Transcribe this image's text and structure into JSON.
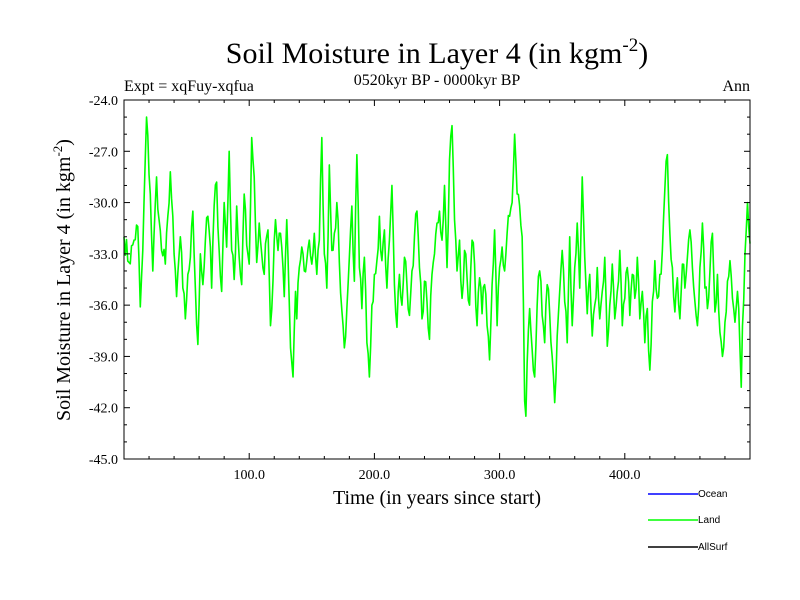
{
  "chart_data": {
    "type": "line",
    "title": "Soil Moisture in Layer 4 (in kgm",
    "title_sup": "-2",
    "title_close": ")",
    "subtitle_left": "Expt = xqFuy-xqfua",
    "subtitle_center": "0520kyr BP - 0000kyr BP",
    "subtitle_right": "Ann",
    "xlabel": "Time (in years since start)",
    "ylabel": "Soil Moisture in Layer 4 (in kgm",
    "ylabel_sup": "-2",
    "ylabel_close": ")",
    "xlim": [
      0,
      500
    ],
    "ylim": [
      -45,
      -24
    ],
    "xticks": [
      100,
      200,
      300,
      400
    ],
    "xtick_labels": [
      "100.0",
      "200.0",
      "300.0",
      "400.0"
    ],
    "yticks": [
      -24,
      -27,
      -30,
      -33,
      -36,
      -39,
      -42,
      -45
    ],
    "ytick_labels": [
      "-24.0",
      "-27.0",
      "-30.0",
      "-33.0",
      "-36.0",
      "-39.0",
      "-42.0",
      "-45.0"
    ],
    "legend_position": "bottom-right",
    "series": [
      {
        "name": "Ocean",
        "color": "#0000ff",
        "values": []
      },
      {
        "name": "Land",
        "color": "#00ff00",
        "anchors": [
          [
            0,
            -32.0
          ],
          [
            4,
            -33.5
          ],
          [
            8,
            -32.2
          ],
          [
            11,
            -31.4
          ],
          [
            13,
            -36.1
          ],
          [
            15,
            -32.8
          ],
          [
            18,
            -25.0
          ],
          [
            21,
            -29.5
          ],
          [
            23,
            -34.0
          ],
          [
            26,
            -28.5
          ],
          [
            28,
            -31.0
          ],
          [
            30,
            -32.8
          ],
          [
            33,
            -33.6
          ],
          [
            35,
            -30.8
          ],
          [
            37,
            -28.2
          ],
          [
            40,
            -33.0
          ],
          [
            42,
            -35.5
          ],
          [
            45,
            -32.0
          ],
          [
            47,
            -35.0
          ],
          [
            49,
            -36.8
          ],
          [
            51,
            -34.2
          ],
          [
            53,
            -33.2
          ],
          [
            55,
            -30.5
          ],
          [
            57,
            -35.0
          ],
          [
            59,
            -38.3
          ],
          [
            61,
            -33.0
          ],
          [
            63,
            -34.8
          ],
          [
            65,
            -32.2
          ],
          [
            67,
            -30.8
          ],
          [
            69,
            -32.6
          ],
          [
            70,
            -35.0
          ],
          [
            72,
            -30.2
          ],
          [
            74,
            -28.8
          ],
          [
            76,
            -32.8
          ],
          [
            78,
            -35.2
          ],
          [
            80,
            -30.0
          ],
          [
            82,
            -32.6
          ],
          [
            84,
            -27.0
          ],
          [
            86,
            -32.8
          ],
          [
            88,
            -34.5
          ],
          [
            90,
            -30.2
          ],
          [
            92,
            -33.2
          ],
          [
            94,
            -34.8
          ],
          [
            96,
            -29.5
          ],
          [
            98,
            -32.5
          ],
          [
            100,
            -33.6
          ],
          [
            102,
            -26.2
          ],
          [
            104,
            -28.5
          ],
          [
            106,
            -33.5
          ],
          [
            108,
            -31.2
          ],
          [
            110,
            -33.0
          ],
          [
            112,
            -34.2
          ],
          [
            113,
            -32.4
          ],
          [
            115,
            -31.6
          ],
          [
            117,
            -37.2
          ],
          [
            119,
            -34.6
          ],
          [
            121,
            -31.0
          ],
          [
            123,
            -32.8
          ],
          [
            125,
            -31.8
          ],
          [
            127,
            -33.8
          ],
          [
            128,
            -35.5
          ],
          [
            130,
            -31.0
          ],
          [
            131,
            -33.2
          ],
          [
            133,
            -38.5
          ],
          [
            135,
            -40.2
          ],
          [
            137,
            -35.2
          ],
          [
            138,
            -36.8
          ],
          [
            140,
            -33.8
          ],
          [
            142,
            -32.6
          ],
          [
            144,
            -34.0
          ],
          [
            146,
            -33.4
          ],
          [
            148,
            -32.2
          ],
          [
            150,
            -33.6
          ],
          [
            152,
            -31.8
          ],
          [
            154,
            -34.2
          ],
          [
            156,
            -32.2
          ],
          [
            158,
            -26.2
          ],
          [
            160,
            -33.0
          ],
          [
            162,
            -35.0
          ],
          [
            164,
            -27.8
          ],
          [
            166,
            -32.8
          ],
          [
            168,
            -31.8
          ],
          [
            170,
            -30.0
          ],
          [
            172,
            -33.5
          ],
          [
            174,
            -36.3
          ],
          [
            176,
            -38.5
          ],
          [
            178,
            -36.2
          ],
          [
            180,
            -33.2
          ],
          [
            182,
            -30.2
          ],
          [
            184,
            -34.6
          ],
          [
            186,
            -27.2
          ],
          [
            188,
            -33.8
          ],
          [
            190,
            -36.2
          ],
          [
            192,
            -33.2
          ],
          [
            194,
            -38.2
          ],
          [
            196,
            -40.2
          ],
          [
            198,
            -36.0
          ],
          [
            200,
            -34.2
          ],
          [
            202,
            -33.4
          ],
          [
            204,
            -30.8
          ],
          [
            206,
            -33.4
          ],
          [
            208,
            -31.6
          ],
          [
            210,
            -35.0
          ],
          [
            212,
            -32.2
          ],
          [
            214,
            -29.0
          ],
          [
            216,
            -34.8
          ],
          [
            218,
            -37.3
          ],
          [
            220,
            -34.2
          ],
          [
            222,
            -36.0
          ],
          [
            224,
            -33.2
          ],
          [
            226,
            -34.8
          ],
          [
            228,
            -36.6
          ],
          [
            230,
            -34.0
          ],
          [
            232,
            -32.0
          ],
          [
            234,
            -30.5
          ],
          [
            236,
            -33.8
          ],
          [
            238,
            -36.8
          ],
          [
            240,
            -34.6
          ],
          [
            242,
            -35.8
          ],
          [
            244,
            -38.0
          ],
          [
            246,
            -34.2
          ],
          [
            248,
            -33.0
          ],
          [
            250,
            -31.2
          ],
          [
            252,
            -30.5
          ],
          [
            254,
            -32.2
          ],
          [
            256,
            -29.0
          ],
          [
            258,
            -33.8
          ],
          [
            260,
            -27.5
          ],
          [
            262,
            -25.5
          ],
          [
            264,
            -31.0
          ],
          [
            266,
            -34.0
          ],
          [
            268,
            -32.2
          ],
          [
            270,
            -35.6
          ],
          [
            272,
            -32.8
          ],
          [
            274,
            -34.4
          ],
          [
            276,
            -36.0
          ],
          [
            278,
            -32.2
          ],
          [
            280,
            -33.6
          ],
          [
            282,
            -37.2
          ],
          [
            284,
            -34.4
          ],
          [
            286,
            -36.5
          ],
          [
            288,
            -34.8
          ],
          [
            290,
            -37.2
          ],
          [
            292,
            -39.2
          ],
          [
            294,
            -34.8
          ],
          [
            296,
            -31.6
          ],
          [
            298,
            -37.2
          ],
          [
            300,
            -33.8
          ],
          [
            302,
            -32.6
          ],
          [
            304,
            -34.0
          ],
          [
            306,
            -31.8
          ],
          [
            308,
            -30.8
          ],
          [
            310,
            -30.0
          ],
          [
            312,
            -26.0
          ],
          [
            314,
            -29.5
          ],
          [
            316,
            -30.2
          ],
          [
            318,
            -32.0
          ],
          [
            319,
            -35.8
          ],
          [
            320,
            -41.6
          ],
          [
            321,
            -42.5
          ],
          [
            322,
            -39.4
          ],
          [
            324,
            -36.2
          ],
          [
            326,
            -38.6
          ],
          [
            328,
            -40.2
          ],
          [
            330,
            -36.0
          ],
          [
            332,
            -34.0
          ],
          [
            334,
            -36.6
          ],
          [
            336,
            -38.2
          ],
          [
            338,
            -34.8
          ],
          [
            340,
            -36.5
          ],
          [
            342,
            -39.0
          ],
          [
            344,
            -41.7
          ],
          [
            346,
            -37.8
          ],
          [
            348,
            -35.2
          ],
          [
            350,
            -32.8
          ],
          [
            352,
            -35.8
          ],
          [
            354,
            -38.2
          ],
          [
            356,
            -32.0
          ],
          [
            358,
            -37.2
          ],
          [
            360,
            -33.8
          ],
          [
            362,
            -31.2
          ],
          [
            364,
            -35.0
          ],
          [
            366,
            -28.5
          ],
          [
            368,
            -33.2
          ],
          [
            370,
            -36.5
          ],
          [
            372,
            -34.2
          ],
          [
            374,
            -37.8
          ],
          [
            376,
            -36.0
          ],
          [
            378,
            -33.8
          ],
          [
            380,
            -36.8
          ],
          [
            382,
            -35.2
          ],
          [
            384,
            -33.2
          ],
          [
            386,
            -38.4
          ],
          [
            388,
            -36.0
          ],
          [
            390,
            -33.6
          ],
          [
            392,
            -36.8
          ],
          [
            394,
            -35.2
          ],
          [
            396,
            -32.8
          ],
          [
            398,
            -37.2
          ],
          [
            400,
            -35.6
          ],
          [
            402,
            -33.8
          ],
          [
            404,
            -36.6
          ],
          [
            406,
            -34.2
          ],
          [
            408,
            -35.6
          ],
          [
            410,
            -33.2
          ],
          [
            412,
            -36.8
          ],
          [
            414,
            -35.2
          ],
          [
            416,
            -38.2
          ],
          [
            418,
            -36.2
          ],
          [
            420,
            -39.8
          ],
          [
            422,
            -35.8
          ],
          [
            424,
            -33.4
          ],
          [
            426,
            -35.6
          ],
          [
            428,
            -34.2
          ],
          [
            430,
            -32.8
          ],
          [
            432,
            -29.2
          ],
          [
            434,
            -27.2
          ],
          [
            436,
            -31.8
          ],
          [
            438,
            -33.8
          ],
          [
            440,
            -36.4
          ],
          [
            442,
            -34.4
          ],
          [
            444,
            -36.8
          ],
          [
            446,
            -33.6
          ],
          [
            448,
            -35.0
          ],
          [
            450,
            -33.2
          ],
          [
            452,
            -31.6
          ],
          [
            454,
            -33.8
          ],
          [
            456,
            -35.8
          ],
          [
            458,
            -37.2
          ],
          [
            460,
            -33.8
          ],
          [
            462,
            -31.2
          ],
          [
            464,
            -35.0
          ],
          [
            466,
            -36.2
          ],
          [
            468,
            -34.0
          ],
          [
            470,
            -31.8
          ],
          [
            472,
            -36.4
          ],
          [
            474,
            -34.2
          ],
          [
            476,
            -37.6
          ],
          [
            478,
            -39.0
          ],
          [
            480,
            -37.0
          ],
          [
            482,
            -34.6
          ],
          [
            484,
            -33.4
          ],
          [
            486,
            -35.6
          ],
          [
            488,
            -37.0
          ],
          [
            490,
            -35.2
          ],
          [
            492,
            -38.6
          ],
          [
            493,
            -40.8
          ],
          [
            494,
            -37.2
          ],
          [
            496,
            -33.0
          ],
          [
            498,
            -30.0
          ],
          [
            500,
            -32.4
          ]
        ]
      },
      {
        "name": "AllSurf",
        "color": "#000000",
        "values": []
      }
    ]
  }
}
